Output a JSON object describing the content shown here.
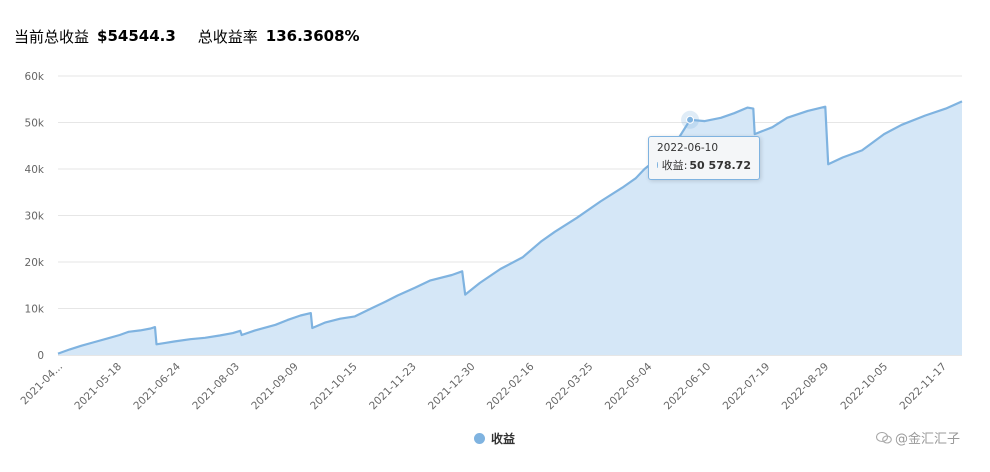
{
  "summary": {
    "profit_label": "当前总收益",
    "profit_value": "$54544.3",
    "rate_label": "总收益率",
    "rate_value": "136.3608%"
  },
  "tooltip": {
    "date": "2022-06-10",
    "series": "收益",
    "value": "50 578.72"
  },
  "watermark": "@金汇汇子",
  "chart_data": {
    "type": "area",
    "title": "",
    "xlabel": "",
    "ylabel": "",
    "ylim": [
      0,
      60000
    ],
    "y_ticks": [
      0,
      10000,
      20000,
      30000,
      40000,
      50000,
      60000
    ],
    "y_tick_labels": [
      "0",
      "10k",
      "20k",
      "30k",
      "40k",
      "50k",
      "60k"
    ],
    "x_tick_labels": [
      "2021-04...",
      "2021-05-18",
      "2021-06-24",
      "2021-08-03",
      "2021-09-09",
      "2021-10-15",
      "2021-11-23",
      "2021-12-30",
      "2022-02-16",
      "2022-03-25",
      "2022-05-04",
      "2022-06-10",
      "2022-07-19",
      "2022-08-29",
      "2022-10-05",
      "2022-11-17"
    ],
    "grid": true,
    "legend": "bottom-center",
    "series": [
      {
        "name": "收益",
        "color": "#7fb3e0",
        "fill": "#d5e7f7",
        "points": [
          [
            "2021-04-06",
            300
          ],
          [
            "2021-04-14",
            1200
          ],
          [
            "2021-04-22",
            2000
          ],
          [
            "2021-05-01",
            2800
          ],
          [
            "2021-05-10",
            3600
          ],
          [
            "2021-05-18",
            4300
          ],
          [
            "2021-05-24",
            5000
          ],
          [
            "2021-06-01",
            5300
          ],
          [
            "2021-06-08",
            5700
          ],
          [
            "2021-06-11",
            6000
          ],
          [
            "2021-06-12",
            2300
          ],
          [
            "2021-06-18",
            2600
          ],
          [
            "2021-06-24",
            2900
          ],
          [
            "2021-07-05",
            3400
          ],
          [
            "2021-07-15",
            3700
          ],
          [
            "2021-07-25",
            4200
          ],
          [
            "2021-08-03",
            4700
          ],
          [
            "2021-08-08",
            5200
          ],
          [
            "2021-08-09",
            4300
          ],
          [
            "2021-08-18",
            5300
          ],
          [
            "2021-09-01",
            6500
          ],
          [
            "2021-09-09",
            7500
          ],
          [
            "2021-09-18",
            8500
          ],
          [
            "2021-09-25",
            9000
          ],
          [
            "2021-09-26",
            5800
          ],
          [
            "2021-10-05",
            7000
          ],
          [
            "2021-10-15",
            7800
          ],
          [
            "2021-10-25",
            8300
          ],
          [
            "2021-11-05",
            10000
          ],
          [
            "2021-11-15",
            11500
          ],
          [
            "2021-11-23",
            12800
          ],
          [
            "2021-12-05",
            14500
          ],
          [
            "2021-12-15",
            16000
          ],
          [
            "2021-12-30",
            17200
          ],
          [
            "2022-01-06",
            18000
          ],
          [
            "2022-01-08",
            13000
          ],
          [
            "2022-01-18",
            15500
          ],
          [
            "2022-02-01",
            18500
          ],
          [
            "2022-02-16",
            21000
          ],
          [
            "2022-03-01",
            24500
          ],
          [
            "2022-03-10",
            26500
          ],
          [
            "2022-03-25",
            29500
          ],
          [
            "2022-04-10",
            33000
          ],
          [
            "2022-04-25",
            36000
          ],
          [
            "2022-05-04",
            38000
          ],
          [
            "2022-05-10",
            40000
          ],
          [
            "2022-05-20",
            42500
          ],
          [
            "2022-06-01",
            46000
          ],
          [
            "2022-06-10",
            50578.72
          ],
          [
            "2022-06-20",
            50300
          ],
          [
            "2022-07-01",
            51000
          ],
          [
            "2022-07-10",
            52000
          ],
          [
            "2022-07-19",
            53200
          ],
          [
            "2022-07-23",
            53000
          ],
          [
            "2022-07-24",
            47500
          ],
          [
            "2022-08-05",
            49000
          ],
          [
            "2022-08-15",
            51000
          ],
          [
            "2022-08-29",
            52500
          ],
          [
            "2022-09-10",
            53400
          ],
          [
            "2022-09-12",
            41000
          ],
          [
            "2022-09-22",
            42500
          ],
          [
            "2022-10-05",
            44000
          ],
          [
            "2022-10-20",
            47500
          ],
          [
            "2022-11-01",
            49500
          ],
          [
            "2022-11-17",
            51500
          ],
          [
            "2022-12-01",
            53000
          ],
          [
            "2022-12-12",
            54544.3
          ]
        ]
      }
    ]
  }
}
